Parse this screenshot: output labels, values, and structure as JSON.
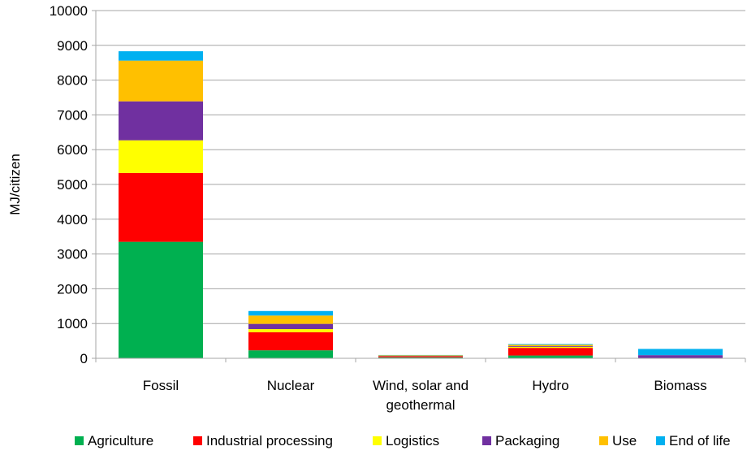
{
  "chart_data": {
    "type": "bar",
    "stacked": true,
    "title": "",
    "xlabel": "",
    "ylabel": "MJ/citizen",
    "ylim": [
      0,
      10000
    ],
    "yticks": [
      0,
      1000,
      2000,
      3000,
      4000,
      5000,
      6000,
      7000,
      8000,
      9000,
      10000
    ],
    "grid": true,
    "legend_position": "bottom",
    "categories": [
      [
        "Fossil"
      ],
      [
        "Nuclear"
      ],
      [
        "Wind, solar and",
        "geothermal"
      ],
      [
        "Hydro"
      ],
      [
        "Biomass"
      ]
    ],
    "series": [
      {
        "name": "Agriculture",
        "color": "#00b050",
        "values": [
          3350,
          230,
          30,
          80,
          0
        ]
      },
      {
        "name": "Industrial processing",
        "color": "#ff0000",
        "values": [
          1980,
          520,
          30,
          220,
          0
        ]
      },
      {
        "name": "Logistics",
        "color": "#ffff00",
        "values": [
          940,
          90,
          5,
          30,
          0
        ]
      },
      {
        "name": "Packaging",
        "color": "#7030a0",
        "values": [
          1120,
          150,
          5,
          20,
          90
        ]
      },
      {
        "name": "Use",
        "color": "#ffc000",
        "values": [
          1170,
          240,
          15,
          40,
          0
        ]
      },
      {
        "name": "End of life",
        "color": "#00b0f0",
        "values": [
          270,
          130,
          10,
          20,
          180
        ]
      }
    ]
  }
}
